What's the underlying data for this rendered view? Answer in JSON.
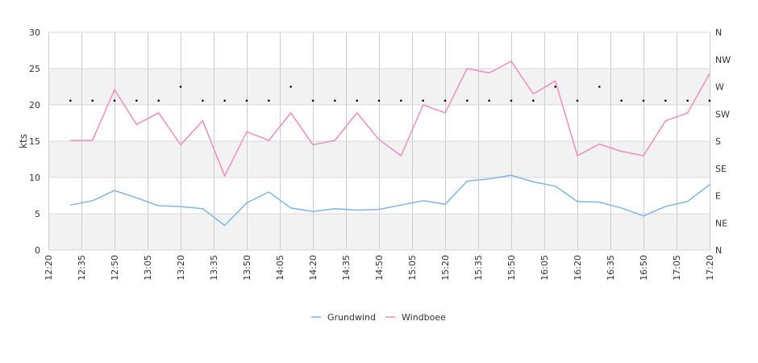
{
  "chart_data": {
    "type": "line",
    "title": "",
    "xlabel": "",
    "ylabel": "kts",
    "ylim": [
      0,
      30
    ],
    "y_ticks": [
      "0",
      "5",
      "10",
      "15",
      "20",
      "25",
      "30"
    ],
    "x_ticks": [
      "12:20",
      "12:35",
      "12:50",
      "13:05",
      "13:20",
      "13:35",
      "13:50",
      "14:05",
      "14:20",
      "14:35",
      "14:50",
      "15:05",
      "15:20",
      "15:35",
      "15:50",
      "16:05",
      "16:20",
      "16:35",
      "16:50",
      "17:05",
      "17:20"
    ],
    "y2_ticks": [
      "N",
      "NE",
      "E",
      "SE",
      "S",
      "SW",
      "W",
      "NW",
      "N"
    ],
    "y2_range_deg": [
      0,
      360
    ],
    "grid": true,
    "legend_position": "bottom",
    "x": [
      "12:30",
      "12:40",
      "12:50",
      "13:00",
      "13:10",
      "13:20",
      "13:30",
      "13:40",
      "13:50",
      "14:00",
      "14:10",
      "14:20",
      "14:30",
      "14:40",
      "14:50",
      "15:00",
      "15:10",
      "15:20",
      "15:30",
      "15:40",
      "15:50",
      "16:00",
      "16:10",
      "16:20",
      "16:30",
      "16:40",
      "16:50",
      "17:00",
      "17:10",
      "17:20"
    ],
    "series": [
      {
        "name": "Grundwind",
        "color": "#7cb5ec",
        "values": [
          6.2,
          6.8,
          8.2,
          7.2,
          6.1,
          6.0,
          5.7,
          3.4,
          6.5,
          8.0,
          5.8,
          5.3,
          5.7,
          5.5,
          5.6,
          6.2,
          6.8,
          6.3,
          9.5,
          9.8,
          10.3,
          9.4,
          8.8,
          6.7,
          6.6,
          5.8,
          4.7,
          6.0,
          6.7,
          9.0
        ]
      },
      {
        "name": "Windboee",
        "color": "#f08cc0",
        "values": [
          15.1,
          15.1,
          22.1,
          17.3,
          18.9,
          14.5,
          17.8,
          10.2,
          16.3,
          15.1,
          18.9,
          14.5,
          15.1,
          18.9,
          15.2,
          13.0,
          20.0,
          18.9,
          25.0,
          24.4,
          26.0,
          21.5,
          23.3,
          13.0,
          14.6,
          13.6,
          13.0,
          17.8,
          18.9,
          24.3
        ]
      },
      {
        "name": "",
        "color": "#000000",
        "role": "wind-direction-deg",
        "values": [
          247,
          247,
          247,
          247,
          247,
          270,
          247,
          247,
          247,
          247,
          270,
          247,
          247,
          247,
          247,
          247,
          247,
          247,
          247,
          247,
          247,
          247,
          270,
          247,
          270,
          247,
          247,
          247,
          247,
          247
        ]
      }
    ]
  }
}
